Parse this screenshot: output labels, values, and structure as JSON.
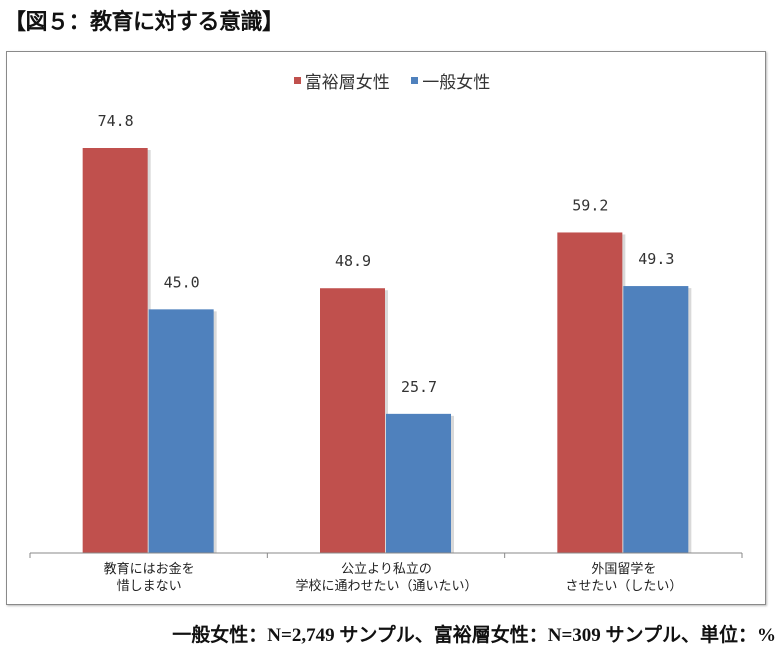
{
  "title": "【図５：教育に対する意識】",
  "footnote": "一般女性：N=2,749 サンプル、富裕層女性：N=309 サンプル、単位：%",
  "chart_data": {
    "type": "bar",
    "title": "【図５：教育に対する意識】",
    "categories": [
      [
        "教育にはお金を",
        "惜しまない"
      ],
      [
        "公立より私立の",
        "学校に通わせたい（通いたい）"
      ],
      [
        "外国留学を",
        "させたい（したい）"
      ]
    ],
    "series": [
      {
        "name": "富裕層女性",
        "color": "#c0504d",
        "values": [
          74.8,
          48.9,
          59.2
        ],
        "labels": [
          "74.8",
          "48.9",
          "59.2"
        ]
      },
      {
        "name": "一般女性",
        "color": "#4f81bd",
        "values": [
          45.0,
          25.7,
          49.3
        ],
        "labels": [
          "45.0",
          "25.7",
          "49.3"
        ]
      }
    ],
    "ylim": [
      0,
      80
    ],
    "legend": "top-center",
    "grid": false,
    "unit": "%"
  }
}
